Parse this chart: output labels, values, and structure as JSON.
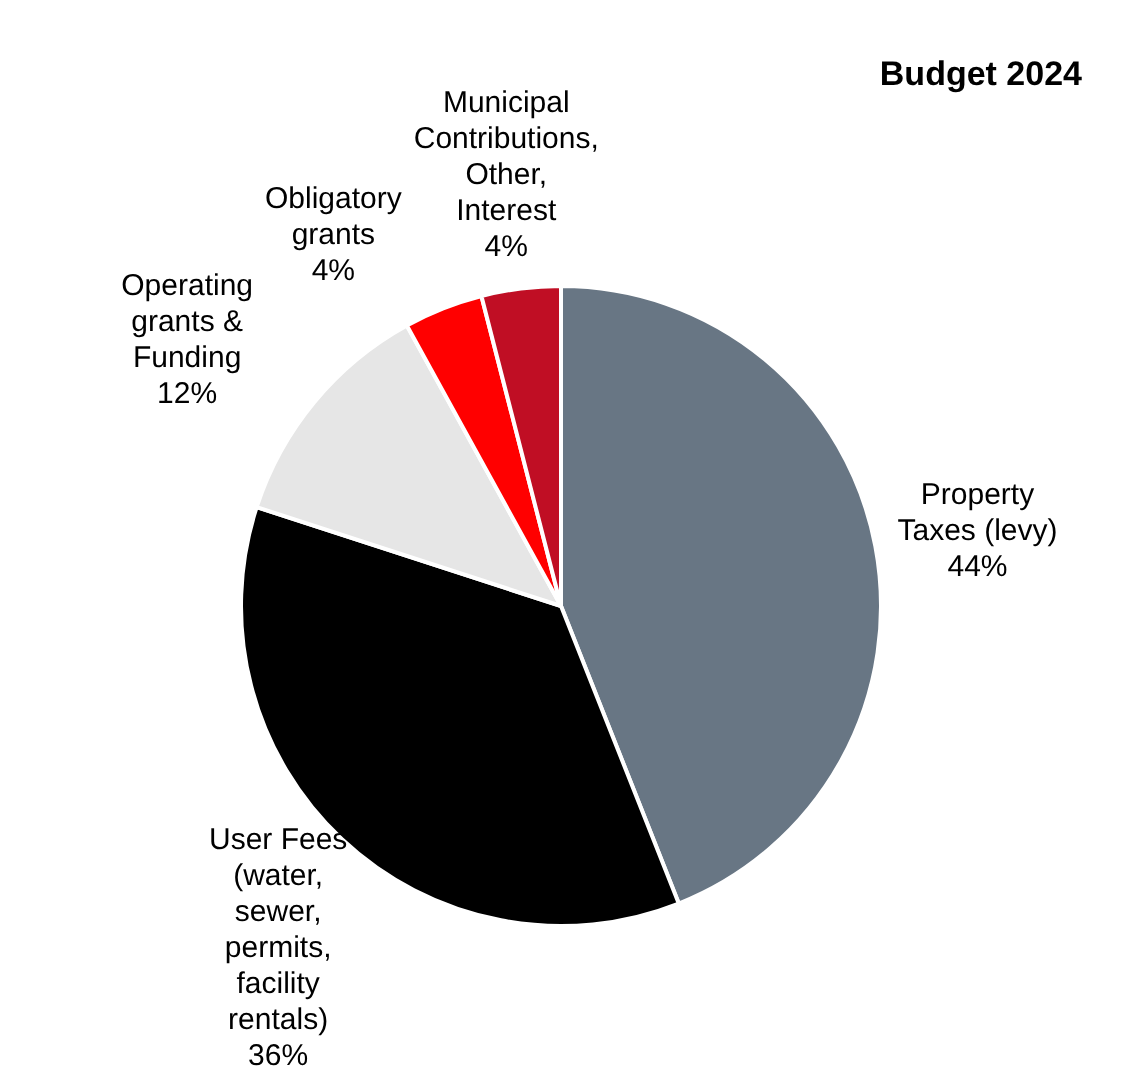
{
  "chart_data": {
    "type": "pie",
    "title": "Budget 2024",
    "categories": [
      "Property Taxes (levy)",
      "User Fees (water, sewer, permits, facility rentals)",
      "Operating grants & Funding",
      "Obligatory grants",
      "Municipal Contributions, Other, Interest"
    ],
    "values": [
      44,
      36,
      12,
      4,
      4
    ],
    "value_labels": [
      "44%",
      "36%",
      "12%",
      "4%",
      "4%"
    ],
    "colors": [
      "#687684",
      "#000000",
      "#e6e6e6",
      "#ff0000",
      "#c00e24"
    ],
    "legend": false
  }
}
